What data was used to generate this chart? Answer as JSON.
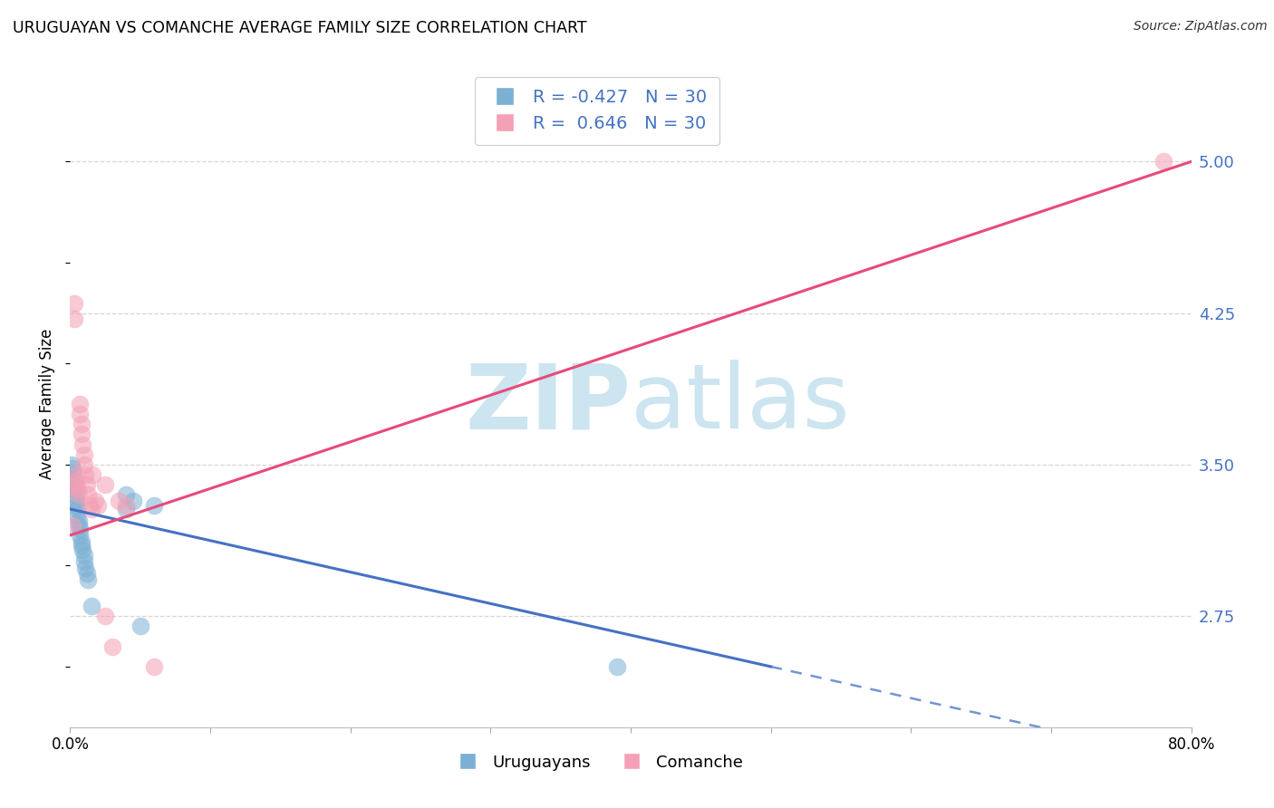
{
  "title": "URUGUAYAN VS COMANCHE AVERAGE FAMILY SIZE CORRELATION CHART",
  "source": "Source: ZipAtlas.com",
  "ylabel": "Average Family Size",
  "yticks": [
    2.75,
    3.5,
    4.25,
    5.0
  ],
  "ylim": [
    2.2,
    5.4
  ],
  "xlim": [
    0.0,
    0.8
  ],
  "legend1_label": "Uruguayans",
  "legend2_label": "Comanche",
  "r1": -0.427,
  "n1": 30,
  "r2": 0.646,
  "n2": 30,
  "uruguayan_x": [
    0.001,
    0.002,
    0.002,
    0.003,
    0.003,
    0.003,
    0.004,
    0.004,
    0.005,
    0.005,
    0.005,
    0.006,
    0.006,
    0.007,
    0.007,
    0.008,
    0.008,
    0.009,
    0.01,
    0.01,
    0.011,
    0.012,
    0.013,
    0.015,
    0.04,
    0.04,
    0.045,
    0.05,
    0.06,
    0.39
  ],
  "uruguayan_y": [
    3.5,
    3.48,
    3.45,
    3.42,
    3.4,
    3.38,
    3.35,
    3.32,
    3.3,
    3.28,
    3.25,
    3.22,
    3.2,
    3.18,
    3.15,
    3.12,
    3.1,
    3.08,
    3.05,
    3.02,
    2.99,
    2.96,
    2.93,
    2.8,
    3.35,
    3.28,
    3.32,
    2.7,
    3.3,
    2.5
  ],
  "comanche_x": [
    0.002,
    0.003,
    0.003,
    0.004,
    0.004,
    0.005,
    0.005,
    0.006,
    0.007,
    0.007,
    0.008,
    0.008,
    0.009,
    0.01,
    0.01,
    0.011,
    0.012,
    0.013,
    0.014,
    0.015,
    0.016,
    0.018,
    0.02,
    0.025,
    0.025,
    0.03,
    0.035,
    0.04,
    0.06,
    0.78
  ],
  "comanche_y": [
    3.2,
    4.3,
    4.22,
    3.45,
    3.42,
    3.4,
    3.38,
    3.35,
    3.8,
    3.75,
    3.7,
    3.65,
    3.6,
    3.55,
    3.5,
    3.45,
    3.4,
    3.35,
    3.3,
    3.28,
    3.45,
    3.32,
    3.3,
    2.75,
    3.4,
    2.6,
    3.32,
    3.3,
    2.5,
    5.0
  ],
  "blue_line_color": "#4472c4",
  "pink_line_color": "#e84b7a",
  "blue_scatter_color": "#7bafd4",
  "pink_scatter_color": "#f4a0b5",
  "background_color": "#ffffff",
  "grid_color": "#cccccc",
  "watermark_color": "#cce5f0",
  "right_axis_color": "#4472c4",
  "xtick_minor_positions": [
    0.0,
    0.1,
    0.2,
    0.3,
    0.4,
    0.5,
    0.6,
    0.7,
    0.8
  ]
}
